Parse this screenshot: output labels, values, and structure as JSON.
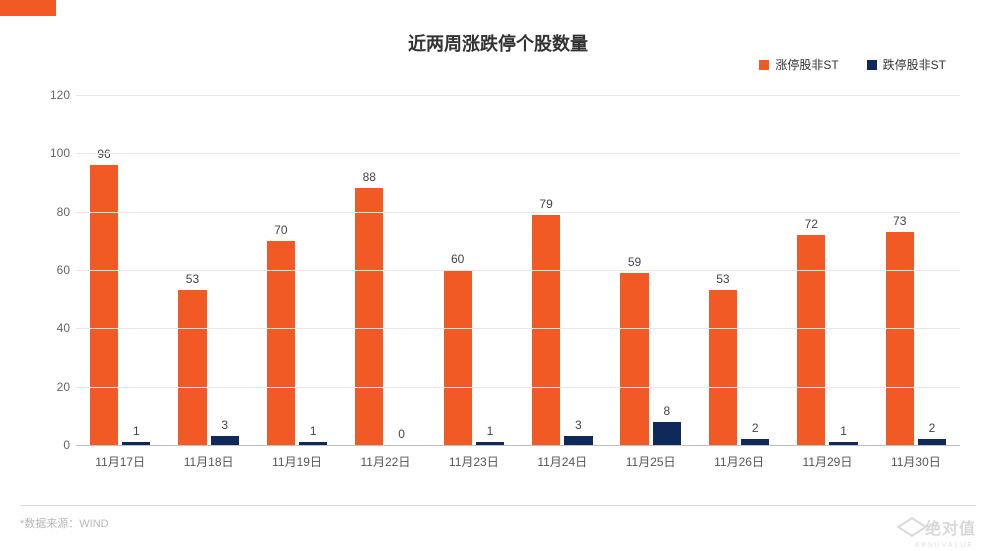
{
  "accent_color": "#f15a24",
  "title": {
    "text": "近两周涨跌停个股数量",
    "fontsize": 18,
    "color": "#333333"
  },
  "legend": {
    "items": [
      {
        "label": "涨停股非ST",
        "color": "#f15a24"
      },
      {
        "label": "跌停股非ST",
        "color": "#0f2a5a"
      }
    ]
  },
  "chart": {
    "type": "bar",
    "categories": [
      "11月17日",
      "11月18日",
      "11月19日",
      "11月22日",
      "11月23日",
      "11月24日",
      "11月25日",
      "11月26日",
      "11月29日",
      "11月30日"
    ],
    "series": [
      {
        "name": "涨停股非ST",
        "color": "#f15a24",
        "values": [
          96,
          53,
          70,
          88,
          60,
          79,
          59,
          53,
          72,
          73
        ]
      },
      {
        "name": "跌停股非ST",
        "color": "#0f2a5a",
        "values": [
          1,
          3,
          1,
          0,
          1,
          3,
          8,
          2,
          1,
          2
        ]
      }
    ],
    "ylim": [
      0,
      120
    ],
    "ytick_step": 20,
    "grid_color": "#e7e7e7",
    "axis_color": "#bfbfbf",
    "background_color": "#ffffff",
    "label_fontsize": 12,
    "tick_fontsize": 12,
    "bar_group_gap": 0.4
  },
  "source": {
    "label": "*数据来源：",
    "value": "WIND"
  },
  "watermark": {
    "text": "绝对值",
    "sub": "ABSUVALUE"
  }
}
